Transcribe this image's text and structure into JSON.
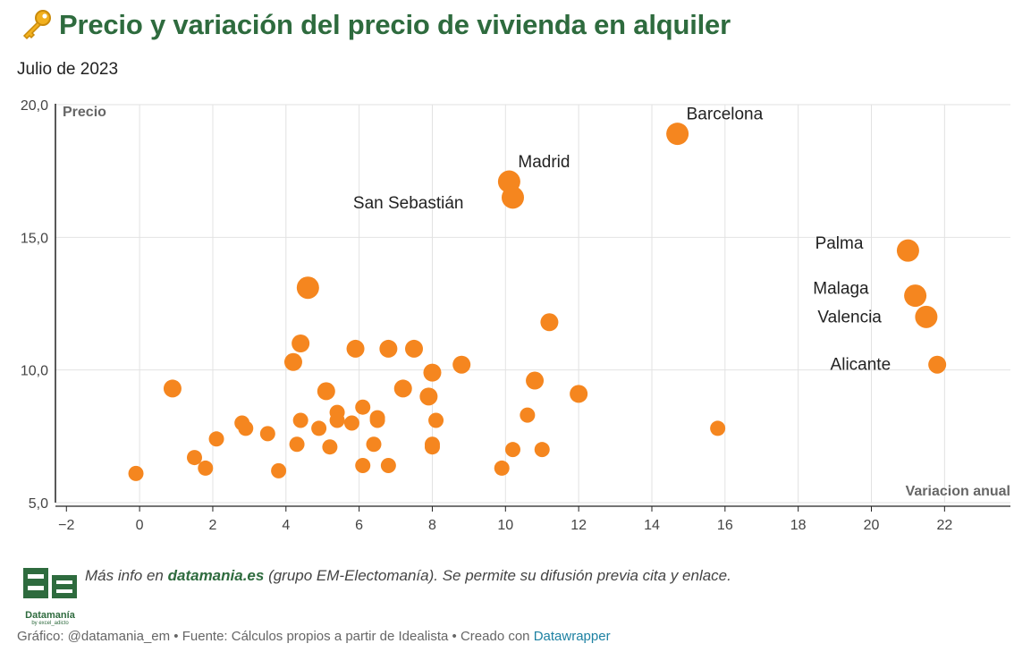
{
  "header": {
    "title": "Precio y variación del precio de vivienda en alquiler",
    "subtitle": "Julio de 2023",
    "icon": "key-icon"
  },
  "colors": {
    "title": "#2e6b3e",
    "points": "#f5861f",
    "grid": "#e2e2e2",
    "link": "#1d81a2"
  },
  "chart_data": {
    "type": "scatter",
    "title": "Precio y variación del precio de vivienda en alquiler",
    "subtitle": "Julio de 2023",
    "xlabel": "Variacion anual",
    "ylabel": "Precio",
    "xlim": [
      -2.3,
      23.8
    ],
    "ylim": [
      5.0,
      20.0
    ],
    "xticks": [
      -2,
      0,
      2,
      4,
      6,
      8,
      10,
      12,
      14,
      16,
      18,
      20,
      22
    ],
    "xtick_labels": [
      "−2",
      "0",
      "2",
      "4",
      "6",
      "8",
      "10",
      "12",
      "14",
      "16",
      "18",
      "20",
      "22"
    ],
    "yticks": [
      5,
      10,
      15,
      20
    ],
    "ytick_labels": [
      "5,0",
      "10,0",
      "15,0",
      "20,0"
    ],
    "grid": true,
    "labeled_points": [
      {
        "label": "Barcelona",
        "x": 14.7,
        "y": 18.9,
        "size": "large",
        "label_pos": "right-above"
      },
      {
        "label": "Madrid",
        "x": 10.1,
        "y": 17.1,
        "size": "large",
        "label_pos": "right-above"
      },
      {
        "label": "San Sebastián",
        "x": 10.2,
        "y": 16.5,
        "size": "large",
        "label_pos": "left"
      },
      {
        "label": "Palma",
        "x": 21.0,
        "y": 14.5,
        "size": "large",
        "label_pos": "left-above"
      },
      {
        "label": "Malaga",
        "x": 21.2,
        "y": 12.8,
        "size": "large",
        "label_pos": "left-above"
      },
      {
        "label": "Valencia",
        "x": 21.5,
        "y": 12.0,
        "size": "large",
        "label_pos": "left"
      },
      {
        "label": "Alicante",
        "x": 21.8,
        "y": 10.2,
        "size": "medium",
        "label_pos": "left"
      }
    ],
    "points": [
      {
        "x": -0.1,
        "y": 6.1,
        "size": "small"
      },
      {
        "x": 0.9,
        "y": 9.3,
        "size": "medium"
      },
      {
        "x": 1.5,
        "y": 6.7,
        "size": "small"
      },
      {
        "x": 1.8,
        "y": 6.3,
        "size": "small"
      },
      {
        "x": 2.1,
        "y": 7.4,
        "size": "small"
      },
      {
        "x": 2.8,
        "y": 8.0,
        "size": "small"
      },
      {
        "x": 2.9,
        "y": 7.8,
        "size": "small"
      },
      {
        "x": 3.5,
        "y": 7.6,
        "size": "small"
      },
      {
        "x": 3.8,
        "y": 6.2,
        "size": "small"
      },
      {
        "x": 4.2,
        "y": 10.3,
        "size": "medium"
      },
      {
        "x": 4.3,
        "y": 7.2,
        "size": "small"
      },
      {
        "x": 4.4,
        "y": 11.0,
        "size": "medium"
      },
      {
        "x": 4.4,
        "y": 8.1,
        "size": "small"
      },
      {
        "x": 4.6,
        "y": 13.1,
        "size": "large"
      },
      {
        "x": 4.9,
        "y": 7.8,
        "size": "small"
      },
      {
        "x": 5.1,
        "y": 9.2,
        "size": "medium"
      },
      {
        "x": 5.2,
        "y": 7.1,
        "size": "small"
      },
      {
        "x": 5.4,
        "y": 8.4,
        "size": "small"
      },
      {
        "x": 5.4,
        "y": 8.1,
        "size": "small"
      },
      {
        "x": 5.8,
        "y": 8.0,
        "size": "small"
      },
      {
        "x": 5.9,
        "y": 10.8,
        "size": "medium"
      },
      {
        "x": 6.1,
        "y": 8.6,
        "size": "small"
      },
      {
        "x": 6.1,
        "y": 6.4,
        "size": "small"
      },
      {
        "x": 6.4,
        "y": 7.2,
        "size": "small"
      },
      {
        "x": 6.5,
        "y": 8.2,
        "size": "small"
      },
      {
        "x": 6.5,
        "y": 8.1,
        "size": "small"
      },
      {
        "x": 6.8,
        "y": 10.8,
        "size": "medium"
      },
      {
        "x": 6.8,
        "y": 6.4,
        "size": "small"
      },
      {
        "x": 7.2,
        "y": 9.3,
        "size": "medium"
      },
      {
        "x": 7.5,
        "y": 10.8,
        "size": "medium"
      },
      {
        "x": 7.9,
        "y": 9.0,
        "size": "medium"
      },
      {
        "x": 8.0,
        "y": 9.9,
        "size": "medium"
      },
      {
        "x": 8.0,
        "y": 7.2,
        "size": "small"
      },
      {
        "x": 8.0,
        "y": 7.1,
        "size": "small"
      },
      {
        "x": 8.1,
        "y": 8.1,
        "size": "small"
      },
      {
        "x": 8.8,
        "y": 10.2,
        "size": "medium"
      },
      {
        "x": 9.9,
        "y": 6.3,
        "size": "small"
      },
      {
        "x": 10.2,
        "y": 7.0,
        "size": "small"
      },
      {
        "x": 10.6,
        "y": 8.3,
        "size": "small"
      },
      {
        "x": 10.8,
        "y": 9.6,
        "size": "medium"
      },
      {
        "x": 11.0,
        "y": 7.0,
        "size": "small"
      },
      {
        "x": 11.2,
        "y": 11.8,
        "size": "medium"
      },
      {
        "x": 12.0,
        "y": 9.1,
        "size": "medium"
      },
      {
        "x": 15.8,
        "y": 7.8,
        "size": "small"
      }
    ]
  },
  "footer": {
    "note_prefix": "Más info en ",
    "note_link": "datamania.es",
    "note_suffix": " (grupo EM-Electomanía). Se permite su difusión previa cita y enlace.",
    "logo_name": "Datamanía",
    "logo_sub": "by excel_adicto",
    "credit_prefix": "Gráfico: @datamania_em • Fuente: Cálculos propios a partir de Idealista • Creado con ",
    "credit_link": "Datawrapper"
  }
}
